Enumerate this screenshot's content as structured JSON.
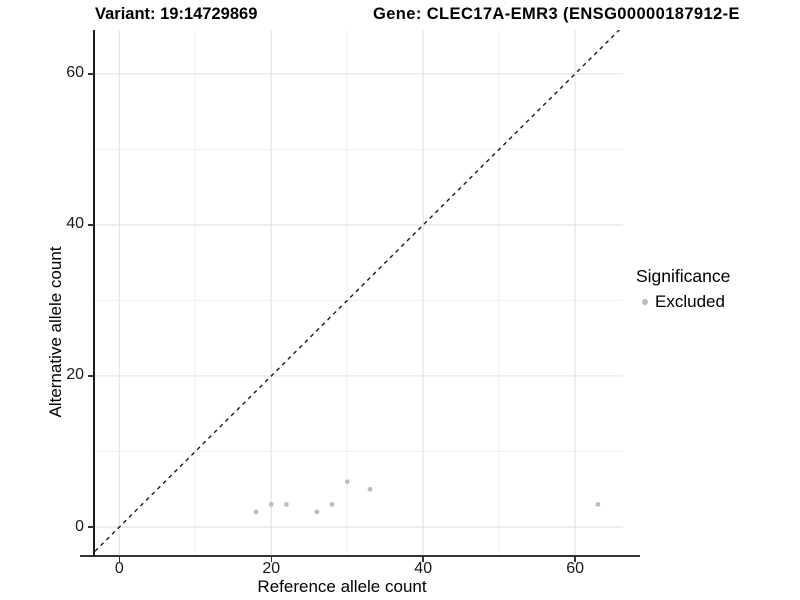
{
  "titles": {
    "variant": "Variant: 19:14729869",
    "gene": "Gene: CLEC17A-EMR3 (ENSG00000187912-E"
  },
  "legend": {
    "title": "Significance",
    "items": [
      {
        "label": "Excluded",
        "color": "#bcbcbc"
      }
    ]
  },
  "colors": {
    "point": "#bcbcbc",
    "grid_major": "#e2e2e2",
    "grid_minor": "#efefef",
    "axis_line": "#333333",
    "identity_line": "#1a1a1a",
    "tick_text": "#1a1a1a"
  },
  "chart_data": {
    "type": "scatter",
    "title_left": "Variant: 19:14729869",
    "title_right": "Gene: CLEC17A-EMR3 (ENSG00000187912-E",
    "xlabel": "Reference allele count",
    "ylabel": "Alternative allele count",
    "x_ticks": [
      0,
      20,
      40,
      60
    ],
    "y_ticks": [
      0,
      20,
      40,
      60
    ],
    "x_minor_ticks": [
      10,
      30,
      50
    ],
    "y_minor_ticks": [
      10,
      30,
      50
    ],
    "xlim": [
      -3.2,
      66.3
    ],
    "ylim": [
      -3.7,
      65.8
    ],
    "grid": true,
    "legend_position": "right",
    "identity_line": {
      "style": "dashed",
      "slope": 1,
      "intercept": 0
    },
    "series": [
      {
        "name": "Excluded",
        "color": "#bcbcbc",
        "points": [
          [
            18,
            2
          ],
          [
            20,
            3
          ],
          [
            22,
            3
          ],
          [
            26,
            2
          ],
          [
            28,
            3
          ],
          [
            30,
            6
          ],
          [
            33,
            5
          ],
          [
            63,
            3
          ]
        ]
      }
    ]
  }
}
